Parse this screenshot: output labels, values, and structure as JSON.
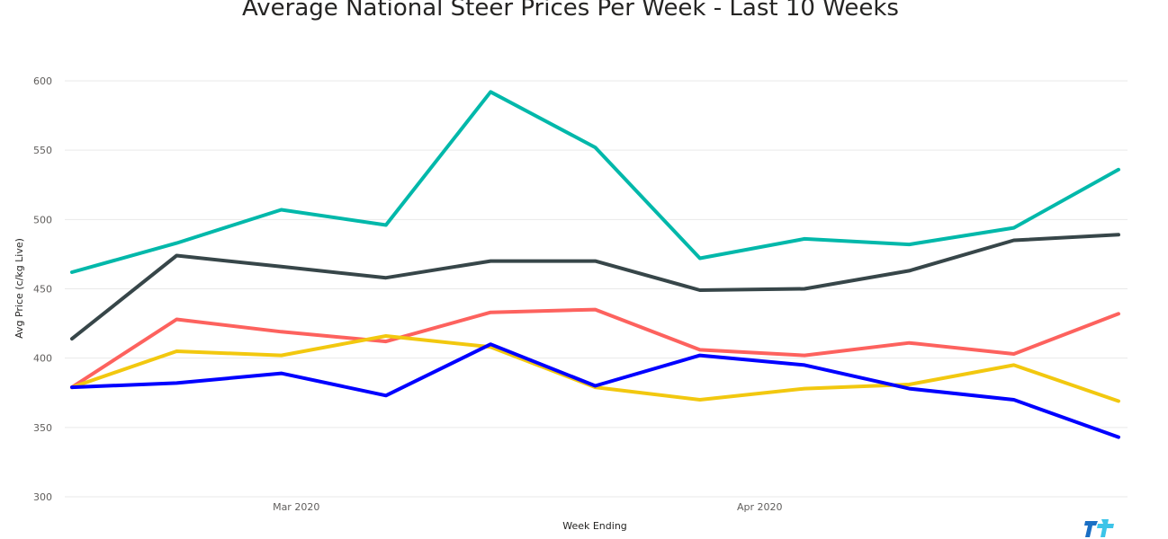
{
  "chart_data": {
    "type": "line",
    "title": "Average National Steer Prices Per Week - Last 10 Weeks",
    "xlabel": "Week Ending",
    "ylabel": "Avg Price (c/kg Live)",
    "ylim": [
      300,
      600
    ],
    "yticks": [
      300,
      350,
      400,
      450,
      500,
      550,
      600
    ],
    "x": [
      "2020-02-15",
      "2020-02-22",
      "2020-02-29",
      "2020-03-07",
      "2020-03-14",
      "2020-03-21",
      "2020-03-28",
      "2020-04-04",
      "2020-04-11",
      "2020-04-18",
      "2020-04-25"
    ],
    "xlim": [
      "2020-02-15",
      "2020-04-25"
    ],
    "xticks": [
      {
        "date": "2020-03-01",
        "label": "Mar 2020"
      },
      {
        "date": "2020-04-01",
        "label": "Apr 2020"
      }
    ],
    "grid": true,
    "series": [
      {
        "color": "#01B8AA",
        "values": [
          462,
          483,
          507,
          496,
          592,
          552,
          472,
          486,
          482,
          494,
          536
        ]
      },
      {
        "color": "#374649",
        "values": [
          414,
          474,
          466,
          458,
          470,
          470,
          449,
          450,
          463,
          485,
          489
        ]
      },
      {
        "color": "#FD625E",
        "values": [
          379,
          428,
          419,
          412,
          433,
          435,
          406,
          402,
          411,
          403,
          432
        ]
      },
      {
        "color": "#F2C80F",
        "values": [
          379,
          405,
          402,
          416,
          408,
          379,
          370,
          378,
          381,
          395,
          369
        ]
      },
      {
        "color": "#0000FF",
        "values": [
          379,
          382,
          389,
          373,
          410,
          380,
          402,
          395,
          378,
          370,
          343
        ]
      }
    ]
  },
  "logo": {
    "icon": "brand-logo-icon",
    "colors": [
      "#1a6fc4",
      "#3cc4e8"
    ]
  }
}
